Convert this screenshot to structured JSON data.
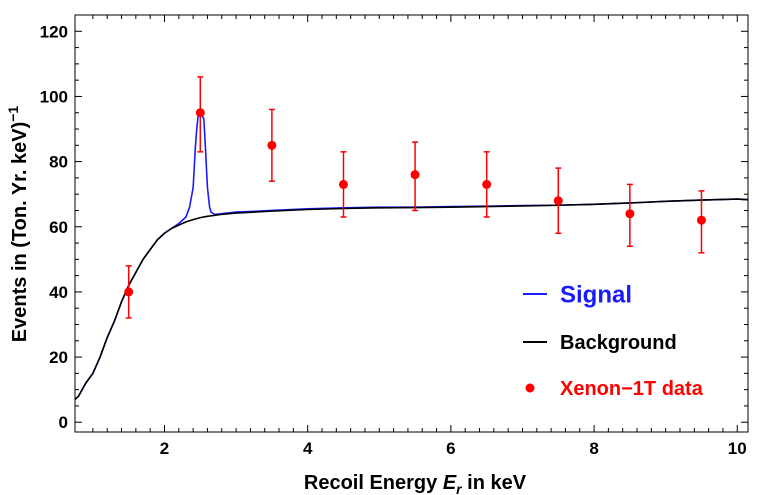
{
  "chart_data": {
    "type": "line",
    "xlabel_prefix": "Recoil Energy ",
    "xlabel_var": "E",
    "xlabel_sub": "r",
    "xlabel_suffix": " in keV",
    "ylabel_main": "Events in (Ton. Yr. keV)",
    "ylabel_sup": "−1",
    "xlim": [
      0.75,
      10.15
    ],
    "ylim": [
      -3,
      125
    ],
    "xticks": [
      2,
      4,
      6,
      8,
      10
    ],
    "yticks": [
      0,
      20,
      40,
      60,
      80,
      100,
      120
    ],
    "series": [
      {
        "name": "Signal",
        "color": "#1a1aff",
        "x": [
          0.75,
          0.8,
          0.9,
          1.0,
          1.1,
          1.2,
          1.3,
          1.4,
          1.5,
          1.6,
          1.7,
          1.8,
          1.9,
          2.0,
          2.1,
          2.2,
          2.25,
          2.3,
          2.35,
          2.4,
          2.43,
          2.45,
          2.47,
          2.5,
          2.53,
          2.55,
          2.57,
          2.6,
          2.63,
          2.65,
          2.7,
          2.8,
          3.0,
          3.5,
          4.0,
          4.5,
          5.0,
          5.5,
          6.0,
          6.5,
          7.0,
          7.5,
          8.0,
          8.5,
          9.0,
          9.5,
          10.0,
          10.15
        ],
        "values": [
          7,
          8,
          12,
          15,
          20,
          26,
          31,
          37,
          42,
          46,
          50,
          53,
          56,
          58,
          59.5,
          61,
          62,
          63,
          66,
          72,
          84,
          90,
          94,
          95,
          94,
          93,
          85,
          72,
          66,
          64.5,
          63.8,
          64,
          64.5,
          65,
          65.5,
          65.8,
          66,
          66,
          66.2,
          66.3,
          66.5,
          66.6,
          66.9,
          67.3,
          67.8,
          68.2,
          68.5,
          68.3
        ]
      },
      {
        "name": "Background",
        "color": "#000000",
        "x": [
          0.75,
          0.8,
          0.9,
          1.0,
          1.1,
          1.2,
          1.3,
          1.4,
          1.5,
          1.6,
          1.7,
          1.8,
          1.9,
          2.0,
          2.1,
          2.2,
          2.3,
          2.4,
          2.5,
          2.6,
          2.7,
          2.8,
          3.0,
          3.5,
          4.0,
          4.5,
          5.0,
          5.5,
          6.0,
          6.5,
          7.0,
          7.5,
          8.0,
          8.5,
          9.0,
          9.5,
          10.0,
          10.15
        ],
        "values": [
          7,
          8,
          12,
          15,
          20,
          26,
          31,
          37,
          42,
          46,
          50,
          53,
          56,
          58,
          59.5,
          60.5,
          61.5,
          62.2,
          62.8,
          63.2,
          63.5,
          63.8,
          64.2,
          64.8,
          65.3,
          65.6,
          65.8,
          65.9,
          66,
          66.2,
          66.4,
          66.6,
          66.9,
          67.3,
          67.8,
          68.2,
          68.5,
          68.3
        ]
      },
      {
        "name": "Xenon-1T data",
        "color": "#ff0000",
        "x": [
          1.5,
          2.5,
          3.5,
          4.5,
          5.5,
          6.5,
          7.5,
          8.5,
          9.5
        ],
        "values": [
          40,
          95,
          85,
          73,
          76,
          73,
          68,
          64,
          62
        ],
        "err_low": [
          8,
          12,
          11,
          10,
          11,
          10,
          10,
          10,
          10
        ],
        "err_high": [
          8,
          11,
          11,
          10,
          10,
          10,
          10,
          9,
          9
        ]
      }
    ],
    "legend": [
      {
        "label": "Signal",
        "kind": "line",
        "color": "#1a1aff"
      },
      {
        "label": "Background",
        "kind": "line",
        "color": "#000000"
      },
      {
        "label": "Xenon−1T data",
        "kind": "dot",
        "color": "#ff0000"
      }
    ],
    "legend_position": "right-middle"
  }
}
